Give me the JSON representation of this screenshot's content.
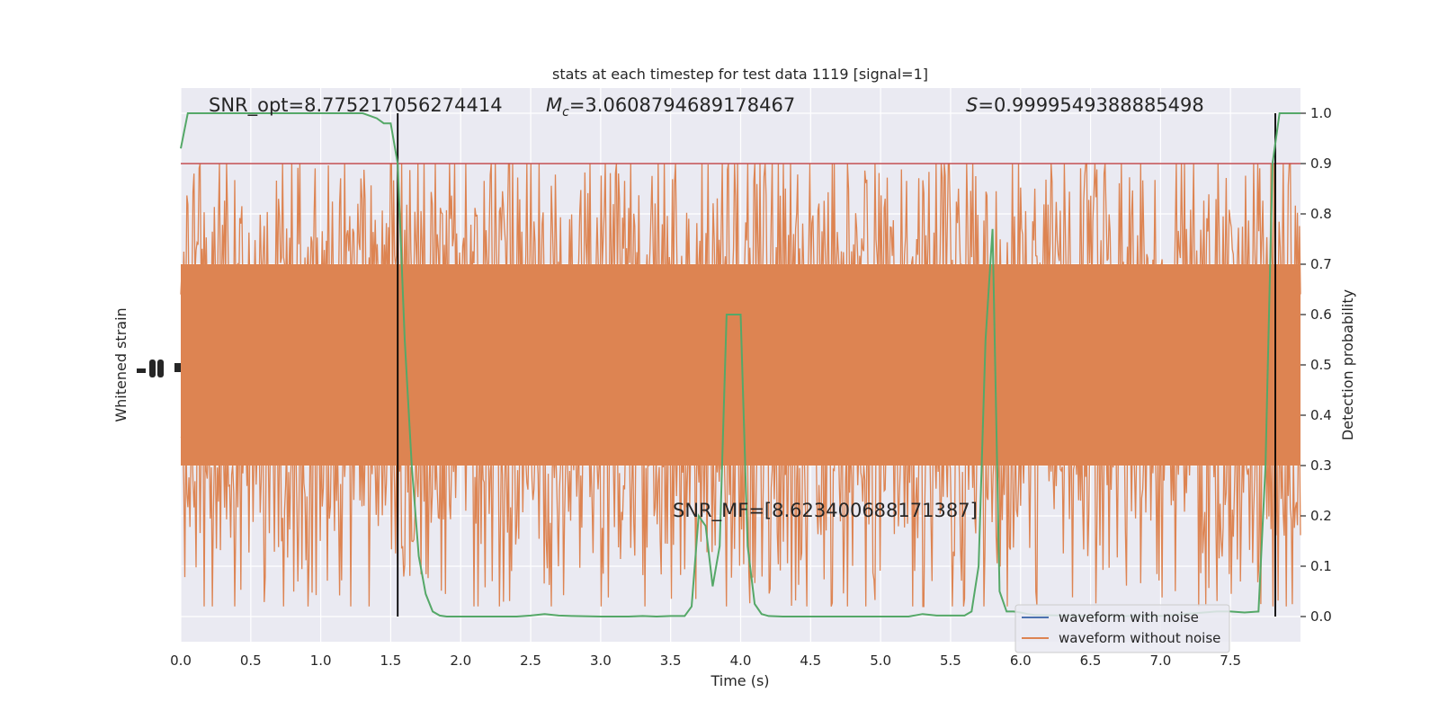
{
  "chart_data": {
    "type": "line",
    "title": "stats at each timestep for test data 1119 [signal=1]",
    "xlabel": "Time (s)",
    "ylabel_left": "Whitened strain",
    "ylabel_right": "Detection probability",
    "xlim": [
      0,
      8
    ],
    "ylim_right": [
      -0.05,
      1.05
    ],
    "x_ticks": [
      "0.0",
      "0.5",
      "1.0",
      "1.5",
      "2.0",
      "2.5",
      "3.0",
      "3.5",
      "4.0",
      "4.5",
      "5.0",
      "5.5",
      "6.0",
      "6.5",
      "7.0",
      "7.5"
    ],
    "y_right_ticks": [
      "0.0",
      "0.1",
      "0.2",
      "0.3",
      "0.4",
      "0.5",
      "0.6",
      "0.7",
      "0.8",
      "0.9",
      "1.0"
    ],
    "grid": true,
    "legend": {
      "placement": "lower-right",
      "entries": [
        {
          "label": "waveform with noise",
          "color": "#4c72b0"
        },
        {
          "label": "waveform without noise",
          "color": "#dd8452"
        }
      ]
    },
    "annotations": {
      "snr_opt": "SNR_opt=8.775217056274414",
      "mc_symbol": "M",
      "mc_sub": "c",
      "mc_value": "=3.0608794689178467",
      "s_symbol": "S",
      "s_value": "=0.9999549388885498",
      "snr_mf": "SNR_MF=[8.623400688171387]"
    },
    "threshold": {
      "value": 0.9,
      "color": "#c44e52"
    },
    "markers": {
      "times": [
        1.55,
        7.82
      ],
      "color": "#000000"
    },
    "noise_band": {
      "color": "#dd8452",
      "center": 0.5,
      "half_range": 0.2,
      "spike_max": 0.9,
      "spike_min": 0.02
    },
    "probability_series": {
      "name": "Detection probability",
      "color": "#55a868",
      "x": [
        0.0,
        0.05,
        0.1,
        0.2,
        0.3,
        0.4,
        0.5,
        0.6,
        0.7,
        0.8,
        0.9,
        1.0,
        1.1,
        1.2,
        1.3,
        1.4,
        1.45,
        1.5,
        1.55,
        1.6,
        1.65,
        1.7,
        1.75,
        1.8,
        1.85,
        1.9,
        2.0,
        2.2,
        2.4,
        2.5,
        2.6,
        2.7,
        2.8,
        3.0,
        3.2,
        3.3,
        3.4,
        3.5,
        3.6,
        3.65,
        3.7,
        3.75,
        3.8,
        3.85,
        3.9,
        3.95,
        4.0,
        4.05,
        4.1,
        4.15,
        4.2,
        4.3,
        4.5,
        5.0,
        5.2,
        5.3,
        5.4,
        5.6,
        5.65,
        5.7,
        5.75,
        5.8,
        5.85,
        5.9,
        5.95,
        6.0,
        6.05,
        6.1,
        6.3,
        6.5,
        7.0,
        7.4,
        7.5,
        7.6,
        7.7,
        7.75,
        7.8,
        7.85,
        7.9,
        7.95,
        8.0
      ],
      "y": [
        0.93,
        1.0,
        1.0,
        1.0,
        1.0,
        1.0,
        1.0,
        1.0,
        1.0,
        1.0,
        1.0,
        1.0,
        1.0,
        1.0,
        1.0,
        0.99,
        0.98,
        0.98,
        0.9,
        0.55,
        0.3,
        0.12,
        0.045,
        0.01,
        0.002,
        0.0,
        0.0,
        0.0,
        0.0,
        0.002,
        0.005,
        0.002,
        0.001,
        0.0,
        0.0,
        0.001,
        0.0,
        0.001,
        0.001,
        0.02,
        0.2,
        0.18,
        0.06,
        0.14,
        0.6,
        0.6,
        0.6,
        0.14,
        0.025,
        0.005,
        0.001,
        0.0,
        0.0,
        0.0,
        0.0,
        0.005,
        0.002,
        0.002,
        0.01,
        0.1,
        0.55,
        0.77,
        0.05,
        0.01,
        0.01,
        0.008,
        0.005,
        0.003,
        0.002,
        0.001,
        0.001,
        0.01,
        0.01,
        0.008,
        0.01,
        0.3,
        0.9,
        1.0,
        1.0,
        1.0,
        1.0
      ]
    }
  }
}
